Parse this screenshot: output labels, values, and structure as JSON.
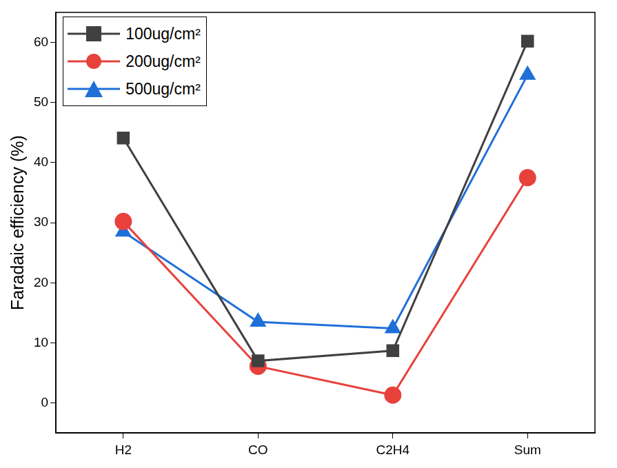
{
  "chart_data": {
    "type": "line",
    "y_label": "Faradaic efficiency (%)",
    "categories": [
      "H2",
      "CO",
      "C2H4",
      "Sum"
    ],
    "series": [
      {
        "name": "100ug/cm²",
        "color": "#404040",
        "marker": "square",
        "line_style": "solid",
        "values": [
          44.1,
          7.0,
          8.7,
          60.2
        ]
      },
      {
        "name": "200ug/cm²",
        "color": "#e8413c",
        "marker": "circle",
        "line_style": "solid",
        "values": [
          30.2,
          6.1,
          1.3,
          37.5
        ]
      },
      {
        "name": "500ug/cm²",
        "color": "#1f6fd8",
        "marker": "triangle",
        "line_style": "solid",
        "values": [
          28.5,
          13.5,
          12.4,
          54.6
        ]
      }
    ],
    "ylim": [
      -5,
      65
    ],
    "yticks": [
      0,
      10,
      20,
      30,
      40,
      50,
      60
    ],
    "grid": false,
    "legend": "upper left"
  }
}
